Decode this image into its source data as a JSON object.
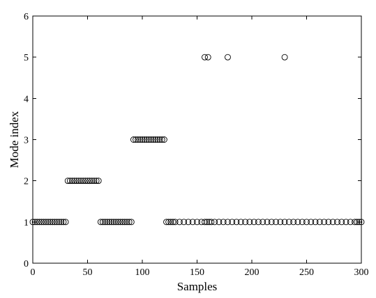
{
  "chart_data": {
    "type": "scatter",
    "title": "",
    "xlabel": "Samples",
    "ylabel": "Mode index",
    "xlim": [
      0,
      300
    ],
    "ylim": [
      0,
      6
    ],
    "xticks": [
      0,
      50,
      100,
      150,
      200,
      250,
      300
    ],
    "yticks": [
      0,
      1,
      2,
      3,
      4,
      5,
      6
    ],
    "grid": false,
    "legend": "none",
    "marker": "circle-open",
    "colors": {
      "marker": "#000000",
      "axis": "#000000",
      "background": "#ffffff"
    },
    "series": [
      {
        "x": [
          0,
          2,
          4,
          6,
          8,
          10,
          12,
          14,
          16,
          18,
          20,
          22,
          24,
          26,
          28,
          30,
          32,
          34,
          36,
          38,
          40,
          42,
          44,
          46,
          48,
          50,
          52,
          54,
          56,
          58,
          60,
          62,
          64,
          66,
          68,
          70,
          72,
          74,
          76,
          78,
          80,
          82,
          84,
          86,
          88,
          90,
          92,
          94,
          96,
          98,
          100,
          102,
          104,
          106,
          108,
          110,
          112,
          114,
          116,
          118,
          120,
          122,
          124,
          126,
          128,
          130,
          134,
          138,
          142,
          146,
          150,
          154,
          157,
          159,
          161,
          163,
          166,
          170,
          174,
          178,
          182,
          186,
          190,
          194,
          198,
          202,
          206,
          210,
          214,
          218,
          222,
          226,
          230,
          234,
          238,
          242,
          246,
          250,
          254,
          258,
          262,
          266,
          270,
          274,
          278,
          282,
          286,
          290,
          294,
          296,
          298,
          300,
          157,
          160,
          178,
          230
        ],
        "y": [
          1,
          1,
          1,
          1,
          1,
          1,
          1,
          1,
          1,
          1,
          1,
          1,
          1,
          1,
          1,
          1,
          2,
          2,
          2,
          2,
          2,
          2,
          2,
          2,
          2,
          2,
          2,
          2,
          2,
          2,
          2,
          1,
          1,
          1,
          1,
          1,
          1,
          1,
          1,
          1,
          1,
          1,
          1,
          1,
          1,
          1,
          3,
          3,
          3,
          3,
          3,
          3,
          3,
          3,
          3,
          3,
          3,
          3,
          3,
          3,
          3,
          1,
          1,
          1,
          1,
          1,
          1,
          1,
          1,
          1,
          1,
          1,
          1,
          1,
          1,
          1,
          1,
          1,
          1,
          1,
          1,
          1,
          1,
          1,
          1,
          1,
          1,
          1,
          1,
          1,
          1,
          1,
          1,
          1,
          1,
          1,
          1,
          1,
          1,
          1,
          1,
          1,
          1,
          1,
          1,
          1,
          1,
          1,
          1,
          1,
          1,
          1,
          5,
          5,
          5,
          5
        ]
      }
    ]
  }
}
